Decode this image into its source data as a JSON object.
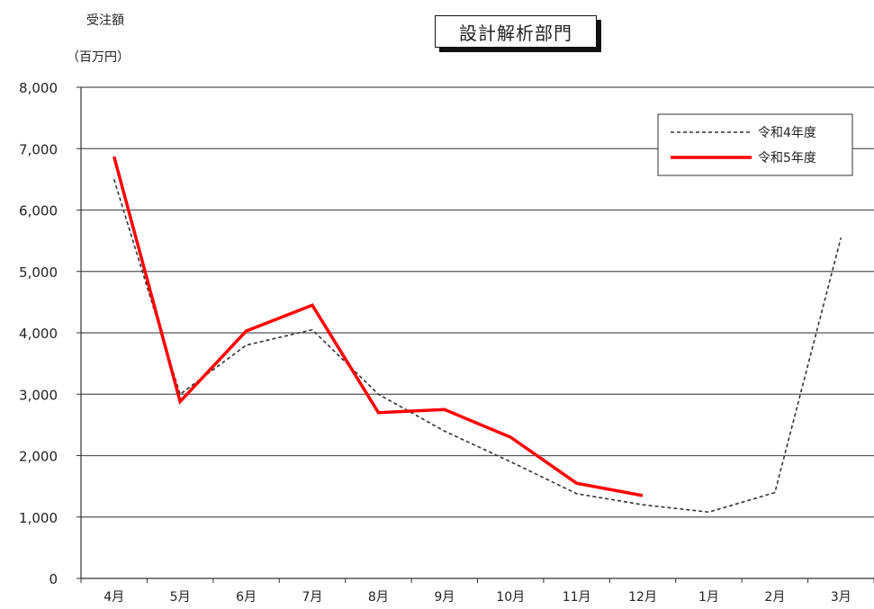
{
  "chart_data": {
    "type": "line",
    "title": "設計解析部門",
    "ylabel_line1": "受注額",
    "ylabel_line2": "（百万円）",
    "xlabel": "",
    "categories": [
      "4月",
      "5月",
      "6月",
      "7月",
      "8月",
      "9月",
      "10月",
      "11月",
      "12月",
      "1月",
      "2月",
      "3月"
    ],
    "ylim": [
      0,
      8000
    ],
    "yticks": [
      0,
      1000,
      2000,
      3000,
      4000,
      5000,
      6000,
      7000,
      8000
    ],
    "ytick_labels": [
      "0",
      "1,000",
      "2,000",
      "3,000",
      "4,000",
      "5,000",
      "6,000",
      "7,000",
      "8,000"
    ],
    "grid": true,
    "legend_position": "top-right",
    "series": [
      {
        "name": "令和4年度",
        "style": "dashed",
        "color": "#333333",
        "values": [
          6500,
          3000,
          3800,
          4050,
          3000,
          2400,
          1900,
          1380,
          1200,
          1080,
          1400,
          5550
        ]
      },
      {
        "name": "令和5年度",
        "style": "solid",
        "color": "#ff0000",
        "values": [
          6870,
          2880,
          4030,
          4450,
          2700,
          2750,
          2300,
          1550,
          1350,
          null,
          null,
          null
        ]
      }
    ]
  }
}
